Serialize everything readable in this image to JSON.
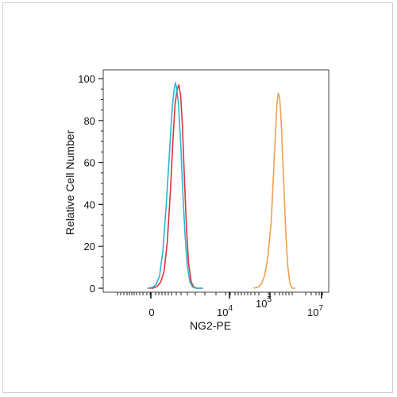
{
  "chart_data": {
    "type": "line",
    "title": "",
    "xlabel": "NG2-PE",
    "ylabel": "Relative Cell Number",
    "x_scale": "biexponential",
    "ylim": [
      0,
      100
    ],
    "y_ticks": [
      0,
      20,
      40,
      60,
      80,
      100
    ],
    "x_tick_labels": [
      {
        "base": "0",
        "exp": ""
      },
      {
        "base": "10",
        "exp": "4"
      },
      {
        "base": "10",
        "exp": "5"
      },
      {
        "base": "10",
        "exp": "7"
      }
    ],
    "grid": false,
    "legend": "none",
    "series": [
      {
        "color": "#d9353b",
        "points": [
          [
            -1.2,
            0
          ],
          [
            -0.95,
            0
          ],
          [
            -0.75,
            1
          ],
          [
            -0.6,
            3
          ],
          [
            -0.45,
            8
          ],
          [
            -0.3,
            22
          ],
          [
            -0.15,
            48
          ],
          [
            -0.05,
            70
          ],
          [
            0.05,
            88
          ],
          [
            0.15,
            95
          ],
          [
            0.22,
            97
          ],
          [
            0.3,
            92
          ],
          [
            0.38,
            78
          ],
          [
            0.46,
            56
          ],
          [
            0.56,
            30
          ],
          [
            0.66,
            12
          ],
          [
            0.78,
            3
          ],
          [
            0.9,
            0.5
          ],
          [
            1.05,
            0
          ],
          [
            1.3,
            0
          ]
        ]
      },
      {
        "color": "#2ab4d8",
        "points": [
          [
            -1.2,
            0
          ],
          [
            -0.95,
            0.5
          ],
          [
            -0.8,
            2
          ],
          [
            -0.65,
            6
          ],
          [
            -0.5,
            18
          ],
          [
            -0.35,
            40
          ],
          [
            -0.2,
            65
          ],
          [
            -0.08,
            86
          ],
          [
            0.0,
            94
          ],
          [
            0.06,
            98
          ],
          [
            0.12,
            96
          ],
          [
            0.2,
            88
          ],
          [
            0.3,
            70
          ],
          [
            0.4,
            46
          ],
          [
            0.5,
            26
          ],
          [
            0.6,
            11
          ],
          [
            0.72,
            3
          ],
          [
            0.85,
            0.5
          ],
          [
            1.0,
            0
          ],
          [
            1.3,
            0
          ]
        ]
      },
      {
        "color": "#f0a050",
        "points": [
          [
            3.6,
            0
          ],
          [
            3.8,
            0.5
          ],
          [
            3.95,
            2
          ],
          [
            4.1,
            6
          ],
          [
            4.25,
            15
          ],
          [
            4.4,
            32
          ],
          [
            4.52,
            58
          ],
          [
            4.6,
            76
          ],
          [
            4.66,
            88
          ],
          [
            4.72,
            93
          ],
          [
            4.78,
            91
          ],
          [
            4.85,
            80
          ],
          [
            4.95,
            55
          ],
          [
            5.05,
            28
          ],
          [
            5.15,
            10
          ],
          [
            5.25,
            2
          ],
          [
            5.35,
            0
          ],
          [
            5.5,
            0
          ]
        ]
      }
    ]
  }
}
